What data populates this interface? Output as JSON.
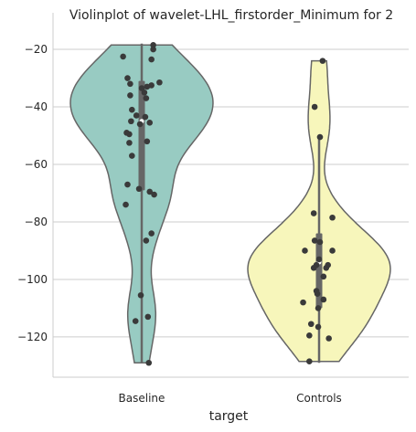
{
  "chart_data": {
    "type": "violin",
    "title": "Violinplot of wavelet-LHL_firstorder_Minimum for 2",
    "xlabel": "target",
    "ylabel": "",
    "categories": [
      "Baseline",
      "Controls"
    ],
    "yticks": [
      -120,
      -100,
      -80,
      -60,
      -40,
      -20
    ],
    "ylim": [
      -134,
      -13
    ],
    "grid": "horizontal",
    "colors": {
      "Baseline": "#98cbc2",
      "Controls": "#f7f6bb",
      "outline": "#666666",
      "box": "#666666",
      "points": "#3a3a3a",
      "grid": "#cccccc",
      "spine": "#cccccc"
    },
    "series": [
      {
        "name": "Baseline",
        "points": [
          [
            -0.21,
            -22.5
          ],
          [
            0.13,
            -18.5
          ],
          [
            0.13,
            -20
          ],
          [
            0.11,
            -23.5
          ],
          [
            0.2,
            -31.5
          ],
          [
            -0.16,
            -30
          ],
          [
            -0.13,
            -32
          ],
          [
            0.11,
            -32.5
          ],
          [
            0.0,
            -33.5
          ],
          [
            0.06,
            -33
          ],
          [
            0.03,
            -35
          ],
          [
            -0.13,
            -36
          ],
          [
            0.05,
            -37
          ],
          [
            -0.11,
            -41
          ],
          [
            -0.06,
            -43
          ],
          [
            0.04,
            -43.5
          ],
          [
            -0.12,
            -45
          ],
          [
            -0.02,
            -46
          ],
          [
            0.09,
            -45.5
          ],
          [
            -0.17,
            -49
          ],
          [
            -0.14,
            -49.5
          ],
          [
            0.06,
            -52
          ],
          [
            -0.14,
            -52.5
          ],
          [
            -0.11,
            -57
          ],
          [
            -0.16,
            -67
          ],
          [
            -0.03,
            -68.5
          ],
          [
            0.09,
            -69.5
          ],
          [
            0.14,
            -70.5
          ],
          [
            -0.18,
            -74
          ],
          [
            0.11,
            -84
          ],
          [
            0.05,
            -86.5
          ],
          [
            -0.01,
            -105.5
          ],
          [
            0.07,
            -113
          ],
          [
            -0.07,
            -114.5
          ],
          [
            0.08,
            -129
          ]
        ],
        "quartiles": {
          "q1": -69,
          "median": -45,
          "q3": -31,
          "whisker_low": -129,
          "whisker_high": -18
        }
      },
      {
        "name": "Controls",
        "points": [
          [
            0.04,
            -24
          ],
          [
            -0.05,
            -40
          ],
          [
            0.01,
            -50.5
          ],
          [
            -0.06,
            -77
          ],
          [
            0.15,
            -78.5
          ],
          [
            -0.05,
            -86.5
          ],
          [
            0.01,
            -87
          ],
          [
            -0.16,
            -90
          ],
          [
            0.15,
            -90
          ],
          [
            0.0,
            -93
          ],
          [
            -0.03,
            -95
          ],
          [
            0.1,
            -95
          ],
          [
            0.08,
            -96
          ],
          [
            -0.06,
            -96
          ],
          [
            0.05,
            -99
          ],
          [
            -0.03,
            -104
          ],
          [
            -0.02,
            -105
          ],
          [
            0.05,
            -107
          ],
          [
            -0.18,
            -108
          ],
          [
            -0.01,
            -110
          ],
          [
            -0.09,
            -115.5
          ],
          [
            -0.01,
            -116.5
          ],
          [
            -0.11,
            -119.5
          ],
          [
            0.11,
            -120.5
          ],
          [
            -0.11,
            -128.5
          ]
        ],
        "quartiles": {
          "q1": -110,
          "median": -94,
          "q3": -84,
          "whisker_low": -129,
          "whisker_high": -50.5
        }
      }
    ]
  }
}
